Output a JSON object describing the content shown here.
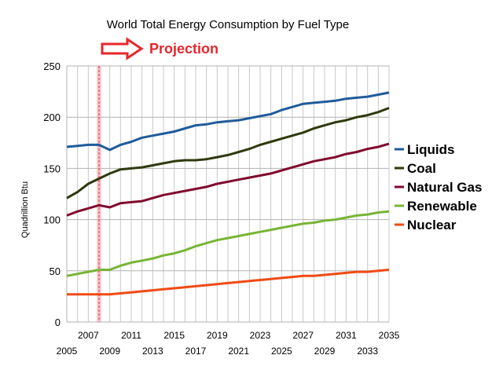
{
  "chart_data": {
    "type": "line",
    "title": "World Total Energy Consumption by Fuel Type",
    "annotation": "Projection",
    "ylabel": "Quadrillion Btu",
    "xlabel": "",
    "xlim": [
      2005,
      2035
    ],
    "ylim": [
      0,
      250
    ],
    "yticks": [
      0,
      50,
      100,
      150,
      200,
      250
    ],
    "xticks_top": [
      "2007",
      "2011",
      "2015",
      "2019",
      "2023",
      "2027",
      "2031",
      "2035"
    ],
    "xticks_bottom": [
      "2005",
      "2009",
      "2013",
      "2017",
      "2021",
      "2025",
      "2029",
      "2033"
    ],
    "projection_marker_x": 2008,
    "grid": true,
    "legend_position": "right",
    "x": [
      2005,
      2006,
      2007,
      2008,
      2009,
      2010,
      2011,
      2012,
      2013,
      2014,
      2015,
      2016,
      2017,
      2018,
      2019,
      2020,
      2021,
      2022,
      2023,
      2024,
      2025,
      2026,
      2027,
      2028,
      2029,
      2030,
      2031,
      2032,
      2033,
      2034,
      2035
    ],
    "series": [
      {
        "name": "Liquids",
        "color": "#1f5b9a",
        "values": [
          171,
          172,
          173,
          173,
          168,
          173,
          176,
          180,
          182,
          184,
          186,
          189,
          192,
          193,
          195,
          196,
          197,
          199,
          201,
          203,
          207,
          210,
          213,
          214,
          215,
          216,
          218,
          219,
          220,
          222,
          224
        ]
      },
      {
        "name": "Coal",
        "color": "#2e3a0c",
        "values": [
          121,
          127,
          135,
          140,
          145,
          149,
          150,
          151,
          153,
          155,
          157,
          158,
          158,
          159,
          161,
          163,
          166,
          169,
          173,
          176,
          179,
          182,
          185,
          189,
          192,
          195,
          197,
          200,
          202,
          205,
          209
        ]
      },
      {
        "name": "Natural Gas",
        "color": "#800a2e",
        "values": [
          104,
          108,
          111,
          114,
          112,
          116,
          117,
          118,
          121,
          124,
          126,
          128,
          130,
          132,
          135,
          137,
          139,
          141,
          143,
          145,
          148,
          151,
          154,
          157,
          159,
          161,
          164,
          166,
          169,
          171,
          174
        ]
      },
      {
        "name": "Renewable",
        "color": "#77b534",
        "values": [
          45,
          47,
          49,
          51,
          51,
          55,
          58,
          60,
          62,
          65,
          67,
          70,
          74,
          77,
          80,
          82,
          84,
          86,
          88,
          90,
          92,
          94,
          96,
          97,
          99,
          100,
          102,
          104,
          105,
          107,
          108
        ]
      },
      {
        "name": "Nuclear",
        "color": "#f04a14",
        "values": [
          27,
          27,
          27,
          27,
          27,
          28,
          29,
          30,
          31,
          32,
          33,
          34,
          35,
          36,
          37,
          38,
          39,
          40,
          41,
          42,
          43,
          44,
          45,
          45,
          46,
          47,
          48,
          49,
          49,
          50,
          51
        ]
      }
    ]
  }
}
